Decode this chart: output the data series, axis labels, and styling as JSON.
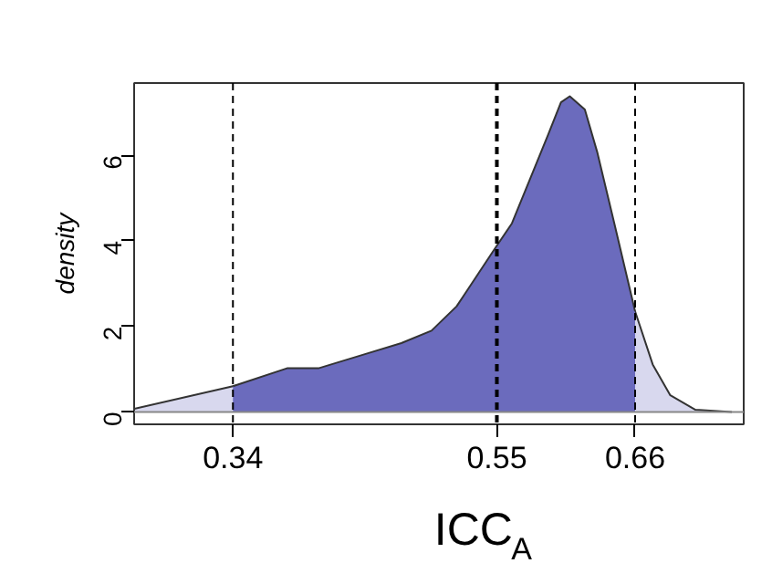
{
  "chart_data": {
    "type": "area",
    "xlabel": "ICC$_{A}$",
    "ylabel": "density",
    "xlim": [
      0.2614,
      0.7464
    ],
    "ylim": [
      -0.29,
      7.69
    ],
    "xticks": [
      0.34,
      0.55,
      0.66
    ],
    "yticks": [
      0,
      2,
      4,
      6
    ],
    "grid": false,
    "series": [
      {
        "color": "#d8d8ee",
        "x": [
          0.2614,
          0.34,
          0.66,
          0.674,
          0.688,
          0.708,
          0.737
        ],
        "values": [
          0.07,
          0.6,
          2.35,
          1.11,
          0.39,
          0.05,
          0
        ]
      },
      {
        "color": "#6b6bbd",
        "x": [
          0.34,
          0.383,
          0.408,
          0.445,
          0.474,
          0.498,
          0.518,
          0.548,
          0.562,
          0.577,
          0.591,
          0.601,
          0.608,
          0.62,
          0.63,
          0.644,
          0.66
        ],
        "values": [
          0.6,
          1.02,
          1.02,
          1.35,
          1.61,
          1.9,
          2.47,
          3.8,
          4.41,
          5.49,
          6.5,
          7.24,
          7.38,
          7.07,
          6.06,
          4.34,
          2.35
        ]
      }
    ],
    "ref_lines": [
      {
        "axis": "y",
        "value": 0,
        "color": "#888888",
        "line_style": "solid"
      },
      {
        "axis": "x",
        "value": 0.34,
        "color": "#000000",
        "line_style": "dashed"
      },
      {
        "axis": "x",
        "value": 0.55,
        "color": "#000000",
        "line_style": "dashed"
      },
      {
        "axis": "x",
        "value": 0.66,
        "color": "#000000",
        "line_style": "dashed"
      }
    ]
  }
}
